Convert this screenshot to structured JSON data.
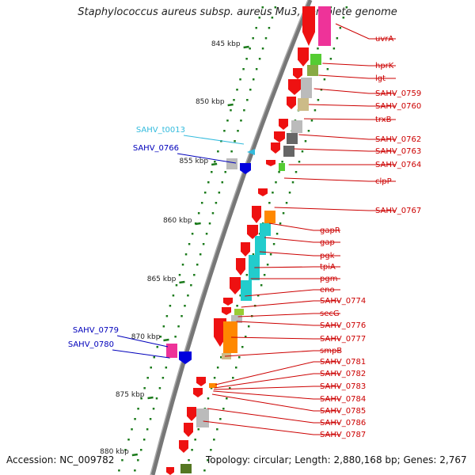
{
  "title": "Staphylococcus aureus subsp. aureus Mu3, complete genome",
  "footer": {
    "accession": "Accession: NC_009782",
    "summary": "Topology: circular; Length: 2,880,168 bp; Genes: 2,767"
  },
  "colors": {
    "backbone": "#777777",
    "tick": "#1a7a1a",
    "label_red": "#cc0000",
    "label_blue": "#0000bb",
    "label_cyan": "#33bbdd",
    "cds_red": "#ee1111",
    "cyan_block": "#22cccc",
    "orange_block": "#ff8800",
    "magenta_block": "#ee3399",
    "green_block": "#55cc33",
    "grey_block": "#bbbbbb",
    "dark_grey_block": "#666666",
    "olive_block": "#ccbb88"
  },
  "scale_ticks": [
    {
      "label": "845 kbp"
    },
    {
      "label": "850 kbp"
    },
    {
      "label": "855 kbp"
    },
    {
      "label": "860 kbp"
    },
    {
      "label": "865 kbp"
    },
    {
      "label": "870 kbp"
    },
    {
      "label": "875 kbp"
    },
    {
      "label": "880 kbp"
    }
  ],
  "gene_labels_right": [
    {
      "name": "uvrA"
    },
    {
      "name": "hprK"
    },
    {
      "name": "lgt"
    },
    {
      "name": "SAHV_0759"
    },
    {
      "name": "SAHV_0760"
    },
    {
      "name": "trxB"
    },
    {
      "name": "SAHV_0762"
    },
    {
      "name": "SAHV_0763"
    },
    {
      "name": "SAHV_0764"
    },
    {
      "name": "clpP"
    },
    {
      "name": "SAHV_0767"
    },
    {
      "name": "gapR"
    },
    {
      "name": "gap"
    },
    {
      "name": "pgk"
    },
    {
      "name": "tpiA"
    },
    {
      "name": "pgm"
    },
    {
      "name": "eno"
    },
    {
      "name": "SAHV_0774"
    },
    {
      "name": "secG"
    },
    {
      "name": "SAHV_0776"
    },
    {
      "name": "SAHV_0777"
    },
    {
      "name": "smpB"
    },
    {
      "name": "SAHV_0781"
    },
    {
      "name": "SAHV_0782"
    },
    {
      "name": "SAHV_0783"
    },
    {
      "name": "SAHV_0784"
    },
    {
      "name": "SAHV_0785"
    },
    {
      "name": "SAHV_0786"
    },
    {
      "name": "SAHV_0787"
    }
  ],
  "gene_labels_left": [
    {
      "name": "SAHV_t0013",
      "color": "cyan"
    },
    {
      "name": "SAHV_0766",
      "color": "blue"
    },
    {
      "name": "SAHV_0779",
      "color": "blue"
    },
    {
      "name": "SAHV_0780",
      "color": "blue"
    }
  ]
}
